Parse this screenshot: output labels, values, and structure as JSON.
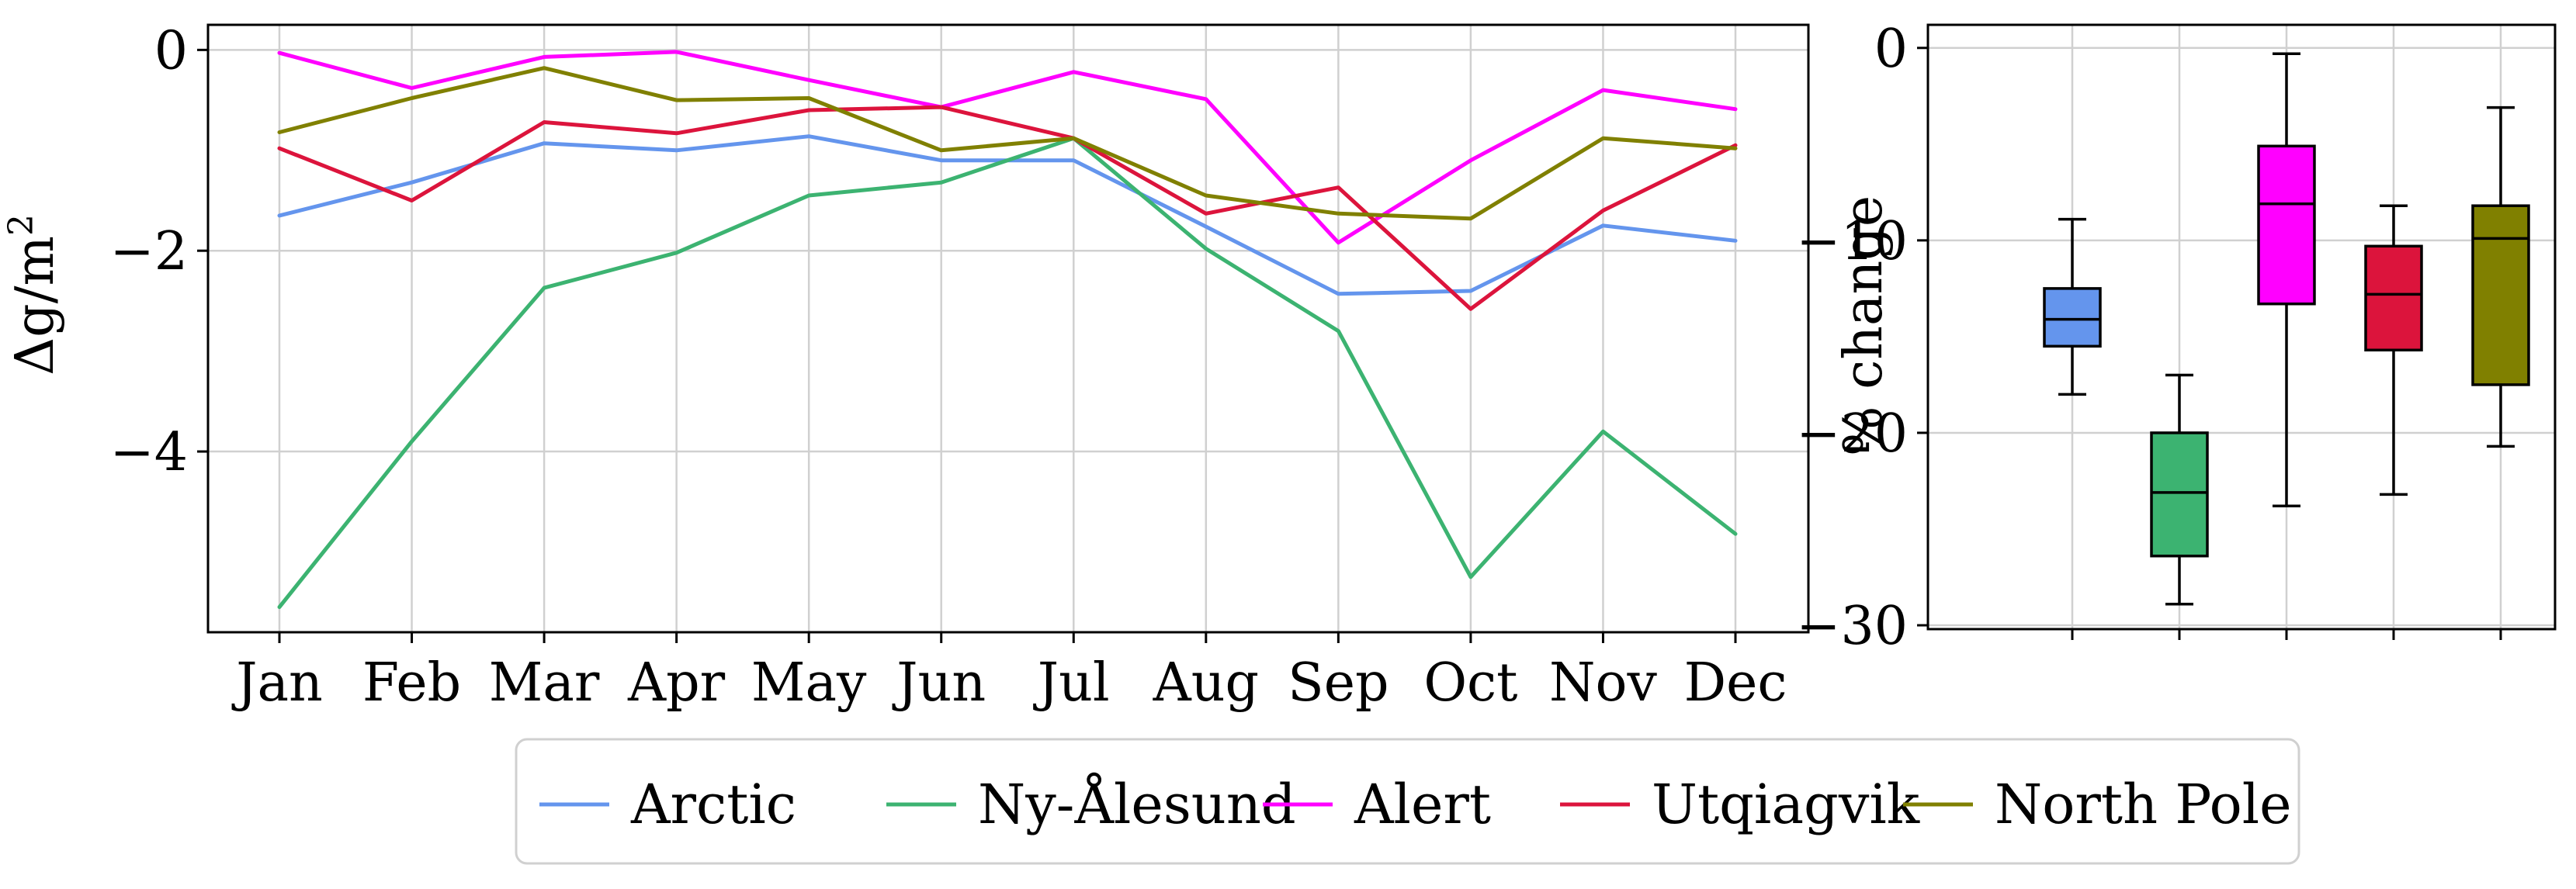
{
  "chart_data": [
    {
      "type": "line",
      "title": "",
      "xlabel": "",
      "ylabel": "Δg/m²",
      "ylabel_parts": {
        "base": "Δg/m",
        "sup": "2"
      },
      "categories": [
        "Jan",
        "Feb",
        "Mar",
        "Apr",
        "May",
        "Jun",
        "Jul",
        "Aug",
        "Sep",
        "Oct",
        "Nov",
        "Dec"
      ],
      "ylim": [
        -5.8,
        0.25
      ],
      "yticks": [
        0,
        -2,
        -4
      ],
      "ytick_labels": [
        "0",
        "−2",
        "−4"
      ],
      "grid": true,
      "series": [
        {
          "name": "Arctic",
          "color": "#6495ED",
          "values": [
            -1.65,
            -1.32,
            -0.93,
            -1.0,
            -0.86,
            -1.1,
            -1.1,
            -1.76,
            -2.43,
            -2.4,
            -1.75,
            -1.9
          ]
        },
        {
          "name": "Ny-Ålesund",
          "color": "#3CB371",
          "values": [
            -5.55,
            -3.9,
            -2.37,
            -2.02,
            -1.45,
            -1.32,
            -0.88,
            -1.98,
            -2.8,
            -5.25,
            -3.8,
            -4.82
          ]
        },
        {
          "name": "Alert",
          "color": "#FF00FF",
          "values": [
            -0.03,
            -0.38,
            -0.07,
            -0.02,
            -0.3,
            -0.57,
            -0.22,
            -0.49,
            -1.92,
            -1.1,
            -0.4,
            -0.59
          ]
        },
        {
          "name": "Utqiagvik",
          "color": "#DC143C",
          "values": [
            -0.98,
            -1.5,
            -0.72,
            -0.83,
            -0.6,
            -0.57,
            -0.88,
            -1.63,
            -1.37,
            -2.58,
            -1.6,
            -0.95
          ]
        },
        {
          "name": "North Pole",
          "color": "#808000",
          "values": [
            -0.82,
            -0.48,
            -0.18,
            -0.5,
            -0.48,
            -1.0,
            -0.88,
            -1.45,
            -1.63,
            -1.68,
            -0.88,
            -0.98
          ]
        }
      ]
    },
    {
      "type": "box",
      "title": "",
      "xlabel": "",
      "ylabel": "% change",
      "ylim": [
        -30.2,
        1.2
      ],
      "yticks": [
        0,
        -10,
        -20,
        -30
      ],
      "ytick_labels": [
        "0",
        "−10",
        "−20",
        "−30"
      ],
      "grid": true,
      "boxes": [
        {
          "name": "Arctic",
          "color": "#6495ED",
          "whisker_low": -18.0,
          "q1": -15.5,
          "median": -14.1,
          "q3": -12.5,
          "whisker_high": -8.9
        },
        {
          "name": "Ny-Ålesund",
          "color": "#3CB371",
          "whisker_low": -28.9,
          "q1": -26.4,
          "median": -23.1,
          "q3": -20.0,
          "whisker_high": -17.0
        },
        {
          "name": "Alert",
          "color": "#FF00FF",
          "whisker_low": -23.8,
          "q1": -13.3,
          "median": -8.1,
          "q3": -5.1,
          "whisker_high": -0.3
        },
        {
          "name": "Utqiagvik",
          "color": "#DC143C",
          "whisker_low": -23.2,
          "q1": -15.7,
          "median": -12.8,
          "q3": -10.3,
          "whisker_high": -8.2
        },
        {
          "name": "North Pole",
          "color": "#808000",
          "whisker_low": -20.7,
          "q1": -17.5,
          "median": -9.9,
          "q3": -8.2,
          "whisker_high": -3.1
        }
      ]
    }
  ],
  "legend": {
    "placement": "bottom-center",
    "items": [
      "Arctic",
      "Ny-Ålesund",
      "Alert",
      "Utqiagvik",
      "North Pole"
    ]
  }
}
